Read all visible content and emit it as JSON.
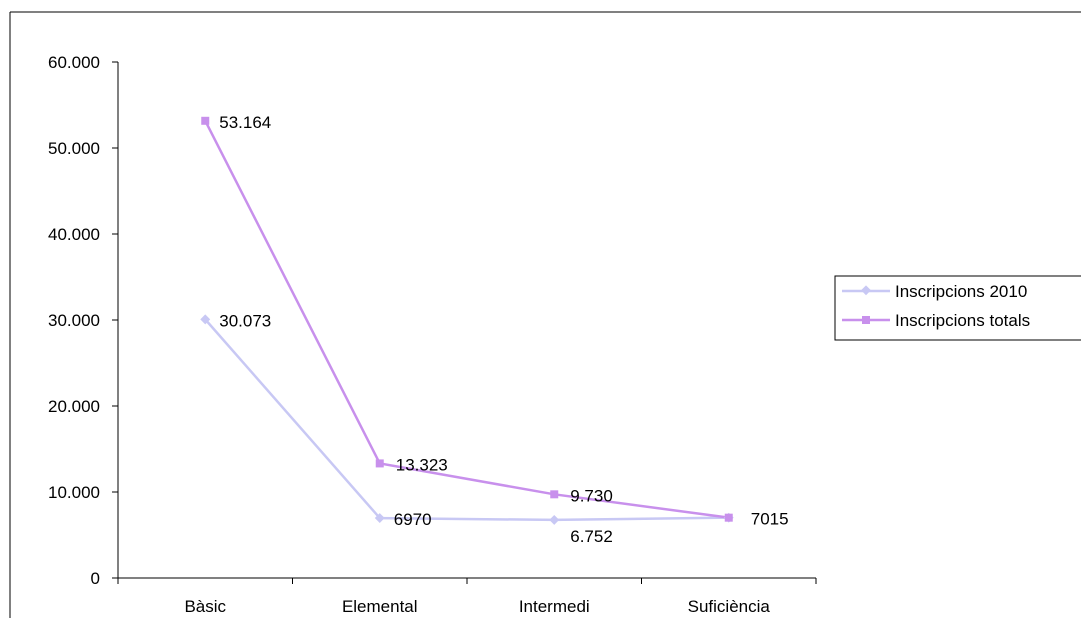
{
  "chart_data": {
    "type": "line",
    "categories": [
      "Bàsic",
      "Elemental",
      "Intermedi",
      "Suficiència"
    ],
    "ylim": [
      0,
      60000
    ],
    "yticks": [
      0,
      10000,
      20000,
      30000,
      40000,
      50000,
      60000
    ],
    "ytick_labels": [
      "0",
      "10.000",
      "20.000",
      "30.000",
      "40.000",
      "50.000",
      "60.000"
    ],
    "grid": false,
    "legend_position": "right",
    "series": [
      {
        "name": "Inscripcions 2010",
        "color": "#c8c8f4",
        "marker": "diamond",
        "values": [
          30073,
          6970,
          6752,
          7015
        ],
        "labels": [
          "30.073",
          "6970",
          "6.752",
          ""
        ]
      },
      {
        "name": "Inscripcions totals",
        "color": "#c890ec",
        "marker": "square",
        "values": [
          53164,
          13323,
          9730,
          7015
        ],
        "labels": [
          "53.164",
          "13.323",
          "9.730",
          "7015"
        ]
      }
    ]
  }
}
